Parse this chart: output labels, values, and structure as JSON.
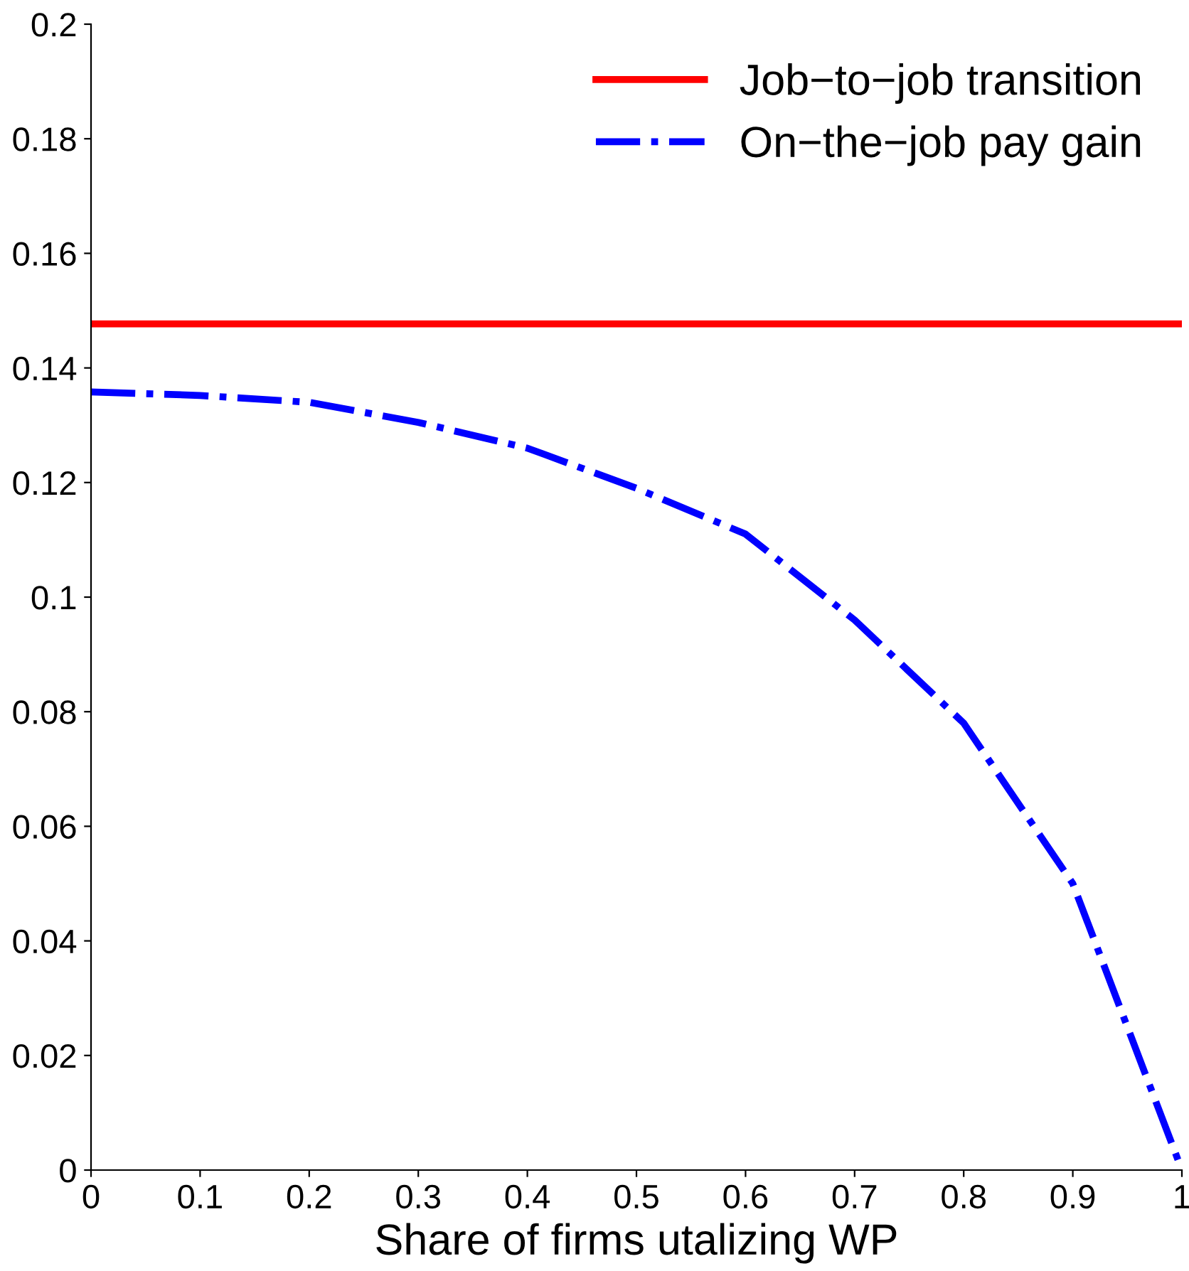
{
  "chart_data": {
    "type": "line",
    "xlabel": "Share of firms utalizing WP",
    "xlim": [
      0,
      1
    ],
    "xticks": [
      0,
      0.1,
      0.2,
      0.3,
      0.4,
      0.5,
      0.6,
      0.7,
      0.8,
      0.9,
      1
    ],
    "ylim": [
      0,
      0.2
    ],
    "yticks": [
      0,
      0.02,
      0.04,
      0.06,
      0.08,
      0.1,
      0.12,
      0.14,
      0.16,
      0.18,
      0.2
    ],
    "grid": false,
    "legend": "top right",
    "series": [
      {
        "name": "Job−to−job transition",
        "color": "#ff0000",
        "line_style": "solid",
        "x": [
          0,
          1
        ],
        "values": [
          0.1477,
          0.1477
        ]
      },
      {
        "name": "On−the−job pay gain",
        "color": "#0000ff",
        "line_style": "dashdot",
        "x": [
          0,
          0.1,
          0.2,
          0.3,
          0.4,
          0.5,
          0.6,
          0.7,
          0.8,
          0.9,
          1
        ],
        "values": [
          0.1358,
          0.1352,
          0.134,
          0.1305,
          0.126,
          0.119,
          0.111,
          0.096,
          0.078,
          0.05,
          0.0
        ]
      }
    ]
  }
}
